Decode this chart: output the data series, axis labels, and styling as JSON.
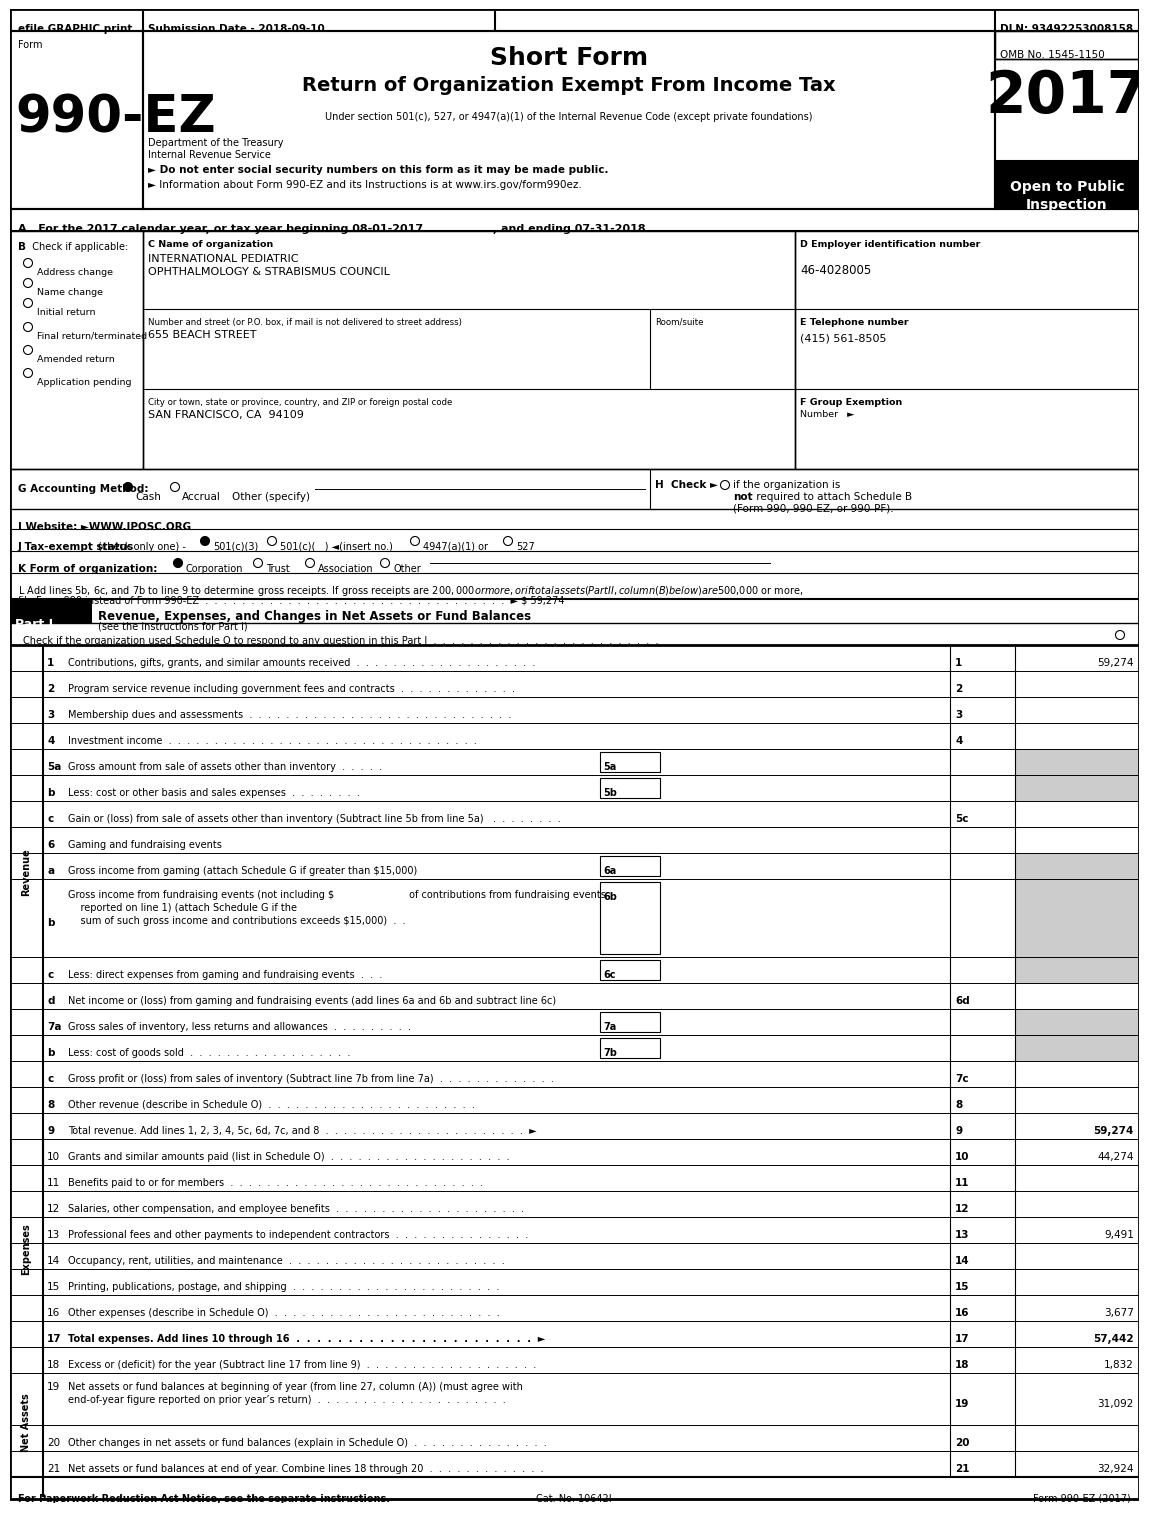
{
  "efile_text": "efile GRAPHIC print",
  "submission_date": "Submission Date - 2018-09-10",
  "dln": "DLN: 93492253008158",
  "omb": "OMB No. 1545-1150",
  "title_line1": "Short Form",
  "title_line2": "Return of Organization Exempt From Income Tax",
  "subtitle": "Under section 501(c), 527, or 4947(a)(1) of the Internal Revenue Code (except private foundations)",
  "form_label": "Form",
  "form_number": "990-EZ",
  "year": "2017",
  "open_line1": "Open to Public",
  "open_line2": "Inspection",
  "dept_treasury": "Department of the Treasury",
  "irs": "Internal Revenue Service",
  "bullet1": "► Do not enter social security numbers on this form as it may be made public.",
  "bullet2": "► Information about Form 990-EZ and its Instructions is at www.irs.gov/form990ez.",
  "line_A": "A   For the 2017 calendar year, or tax year beginning 08-01-2017                  , and ending 07-31-2018",
  "label_B": "B   Check if applicable:",
  "check_items": [
    "Address change",
    "Name change",
    "Initial return",
    "Final return/terminated",
    "Amended return",
    "Application pending"
  ],
  "label_C": "C Name of organization",
  "org_name1": "INTERNATIONAL PEDIATRIC",
  "org_name2": "OPHTHALMOLOGY & STRABISMUS COUNCIL",
  "label_D": "D Employer identification number",
  "ein": "46-4028005",
  "label_street": "Number and street (or P.O. box, if mail is not delivered to street address)",
  "label_room": "Room/suite",
  "street": "655 BEACH STREET",
  "label_E": "E Telephone number",
  "phone": "(415) 561-8505",
  "label_city": "City or town, state or province, country, and ZIP or foreign postal code",
  "city": "SAN FRANCISCO, CA  94109",
  "label_F1": "F Group Exemption",
  "label_F2": "Number   ►",
  "label_G": "G Accounting Method:",
  "label_H_pre": "H  Check ►",
  "label_H_bold": "not",
  "label_H1": "  if the organization is",
  "label_H2": "required to attach Schedule B",
  "label_H3": "(Form 990, 990-EZ, or 990-PF).",
  "label_I": "I Website: ►WWW.IPOSC.ORG",
  "label_J": "J Tax-exempt status",
  "label_J2": "(check only one) -",
  "label_K": "K Form of organization:",
  "label_L1": "L Add lines 5b, 6c, and 7b to line 9 to determine gross receipts. If gross receipts are $200,000 or more, or if total assets (Part II, column (B) below) are $500,000 or more,",
  "label_L2": "file Form 990 instead of Form 990-EZ  .  .  .  .  .  .  .  .  .  .  .  .  .  .  .  .  .  .  .  .  .  .  .  .  .  .  .  .  .  .  .  .  .  ► $ 59,274",
  "part1_title": "Revenue, Expenses, and Changes in Net Assets or Fund Balances",
  "part1_instr": "(see the instructions for Part I)",
  "part1_check": "Check if the organization used Schedule O to respond to any question in this Part I  .  .  .  .  .  .  .  .  .  .  .  .  .  .  .  .  .  .  .  .  .  .  .  .  .",
  "revenue_rows": [
    {
      "num": "1",
      "label": "Contributions, gifts, grants, and similar amounts received  .  .  .  .  .  .  .  .  .  .  .  .  .  .  .  .  .  .  .  .",
      "box": null,
      "line": "1",
      "val": "59,274",
      "shade_right": false,
      "tall": 1
    },
    {
      "num": "2",
      "label": "Program service revenue including government fees and contracts  .  .  .  .  .  .  .  .  .  .  .  .  .",
      "box": null,
      "line": "2",
      "val": "",
      "shade_right": false,
      "tall": 1
    },
    {
      "num": "3",
      "label": "Membership dues and assessments  .  .  .  .  .  .  .  .  .  .  .  .  .  .  .  .  .  .  .  .  .  .  .  .  .  .  .  .  .",
      "box": null,
      "line": "3",
      "val": "",
      "shade_right": false,
      "tall": 1
    },
    {
      "num": "4",
      "label": "Investment income  .  .  .  .  .  .  .  .  .  .  .  .  .  .  .  .  .  .  .  .  .  .  .  .  .  .  .  .  .  .  .  .  .  .",
      "box": null,
      "line": "4",
      "val": "",
      "shade_right": false,
      "tall": 1
    },
    {
      "num": "5a",
      "label": "Gross amount from sale of assets other than inventory  .  .  .  .  .",
      "box": "5a",
      "line": null,
      "val": "",
      "shade_right": true,
      "tall": 1
    },
    {
      "num": "b",
      "label": "Less: cost or other basis and sales expenses  .  .  .  .  .  .  .  .",
      "box": "5b",
      "line": null,
      "val": "",
      "shade_right": true,
      "tall": 1
    },
    {
      "num": "c",
      "label": "Gain or (loss) from sale of assets other than inventory (Subtract line 5b from line 5a)   .  .  .  .  .  .  .  .",
      "box": null,
      "line": "5c",
      "val": "",
      "shade_right": false,
      "tall": 1
    },
    {
      "num": "6",
      "label": "Gaming and fundraising events",
      "box": null,
      "line": null,
      "val": "",
      "shade_right": false,
      "tall": 1
    },
    {
      "num": "a",
      "label": "Gross income from gaming (attach Schedule G if greater than $15,000)",
      "box": "6a",
      "line": null,
      "val": "",
      "shade_right": true,
      "tall": 1
    },
    {
      "num": "b",
      "label": "Gross income from fundraising events (not including $                        of contributions from fundraising events\n    reported on line 1) (attach Schedule G if the\n    sum of such gross income and contributions exceeds $15,000)  .  .",
      "box": "6b",
      "line": null,
      "val": "",
      "shade_right": true,
      "tall": 3
    },
    {
      "num": "c",
      "label": "Less: direct expenses from gaming and fundraising events  .  .  .",
      "box": "6c",
      "line": null,
      "val": "",
      "shade_right": true,
      "tall": 1
    },
    {
      "num": "d",
      "label": "Net income or (loss) from gaming and fundraising events (add lines 6a and 6b and subtract line 6c)",
      "box": null,
      "line": "6d",
      "val": "",
      "shade_right": false,
      "tall": 1
    },
    {
      "num": "7a",
      "label": "Gross sales of inventory, less returns and allowances  .  .  .  .  .  .  .  .  .",
      "box": "7a",
      "line": null,
      "val": "",
      "shade_right": true,
      "tall": 1
    },
    {
      "num": "b",
      "label": "Less: cost of goods sold  .  .  .  .  .  .  .  .  .  .  .  .  .  .  .  .  .  .",
      "box": "7b",
      "line": null,
      "val": "",
      "shade_right": true,
      "tall": 1
    },
    {
      "num": "c",
      "label": "Gross profit or (loss) from sales of inventory (Subtract line 7b from line 7a)  .  .  .  .  .  .  .  .  .  .  .  .  .",
      "box": null,
      "line": "7c",
      "val": "",
      "shade_right": false,
      "tall": 1
    },
    {
      "num": "8",
      "label": "Other revenue (describe in Schedule O)  .  .  .  .  .  .  .  .  .  .  .  .  .  .  .  .  .  .  .  .  .  .  .",
      "box": null,
      "line": "8",
      "val": "",
      "shade_right": false,
      "tall": 1
    },
    {
      "num": "9",
      "label": "Total revenue. Add lines 1, 2, 3, 4, 5c, 6d, 7c, and 8  .  .  .  .  .  .  .  .  .  .  .  .  .  .  .  .  .  .  .  .  .  .  ►",
      "box": null,
      "line": "9",
      "val": "59,274",
      "shade_right": false,
      "tall": 1,
      "bold": true
    }
  ],
  "expense_rows": [
    {
      "num": "10",
      "label": "Grants and similar amounts paid (list in Schedule O)  .  .  .  .  .  .  .  .  .  .  .  .  .  .  .  .  .  .  .  .",
      "line": "10",
      "val": "44,274"
    },
    {
      "num": "11",
      "label": "Benefits paid to or for members  .  .  .  .  .  .  .  .  .  .  .  .  .  .  .  .  .  .  .  .  .  .  .  .  .  .  .  .",
      "line": "11",
      "val": ""
    },
    {
      "num": "12",
      "label": "Salaries, other compensation, and employee benefits  .  .  .  .  .  .  .  .  .  .  .  .  .  .  .  .  .  .  .  .  .",
      "line": "12",
      "val": ""
    },
    {
      "num": "13",
      "label": "Professional fees and other payments to independent contractors  .  .  .  .  .  .  .  .  .  .  .  .  .  .  .",
      "line": "13",
      "val": "9,491"
    },
    {
      "num": "14",
      "label": "Occupancy, rent, utilities, and maintenance  .  .  .  .  .  .  .  .  .  .  .  .  .  .  .  .  .  .  .  .  .  .  .  .",
      "line": "14",
      "val": ""
    },
    {
      "num": "15",
      "label": "Printing, publications, postage, and shipping  .  .  .  .  .  .  .  .  .  .  .  .  .  .  .  .  .  .  .  .  .  .  .",
      "line": "15",
      "val": ""
    },
    {
      "num": "16",
      "label": "Other expenses (describe in Schedule O)  .  .  .  .  .  .  .  .  .  .  .  .  .  .  .  .  .  .  .  .  .  .  .  .  .",
      "line": "16",
      "val": "3,677"
    },
    {
      "num": "17",
      "label": "Total expenses. Add lines 10 through 16  .  .  .  .  .  .  .  .  .  .  .  .  .  .  .  .  .  .  .  .  .  .  .  ►",
      "line": "17",
      "val": "57,442",
      "bold": true
    }
  ],
  "net_rows": [
    {
      "num": "18",
      "label": "Excess or (deficit) for the year (Subtract line 17 from line 9)  .  .  .  .  .  .  .  .  .  .  .  .  .  .  .  .  .  .  .",
      "line": "18",
      "val": "1,832",
      "tall": 1
    },
    {
      "num": "19",
      "label": "Net assets or fund balances at beginning of year (from line 27, column (A)) (must agree with\nend-of-year figure reported on prior year’s return)  .  .  .  .  .  .  .  .  .  .  .  .  .  .  .  .  .  .  .  .  .",
      "line": "19",
      "val": "31,092",
      "tall": 2
    },
    {
      "num": "20",
      "label": "Other changes in net assets or fund balances (explain in Schedule O)  .  .  .  .  .  .  .  .  .  .  .  .  .  .  .",
      "line": "20",
      "val": "",
      "tall": 1
    },
    {
      "num": "21",
      "label": "Net assets or fund balances at end of year. Combine lines 18 through 20  .  .  .  .  .  .  .  .  .  .  .  .  .",
      "line": "21",
      "val": "32,924",
      "tall": 1
    }
  ],
  "footer1": "For Paperwork Reduction Act Notice, see the separate instructions.",
  "footer2": "Cat. No. 10642I",
  "footer3": "Form 990-EZ (2017)"
}
